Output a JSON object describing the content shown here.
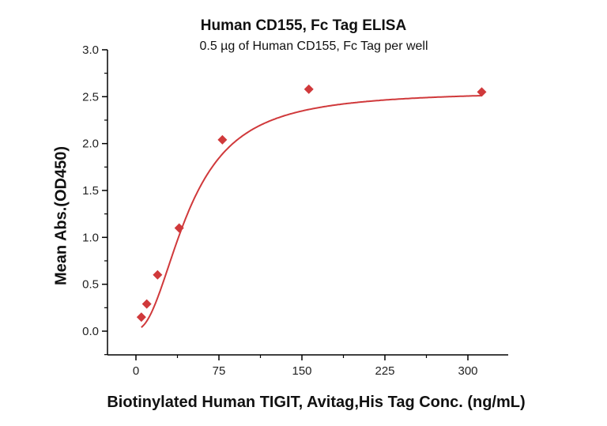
{
  "chart_data": {
    "type": "scatter",
    "title": "Human CD155, Fc Tag ELISA",
    "subtitle": "0.5 µg of Human CD155, Fc Tag per well",
    "xlabel": "Biotinylated Human TIGIT, Avitag,His Tag Conc. (ng/mL)",
    "ylabel": "Mean Abs.(OD450)",
    "xlim": [
      -27,
      337
    ],
    "ylim": [
      -0.25,
      3.0
    ],
    "x_ticks": [
      0,
      75,
      150,
      225,
      300
    ],
    "y_ticks": [
      0.0,
      0.5,
      1.0,
      1.5,
      2.0,
      2.5,
      3.0
    ],
    "x_tick_labels": [
      "0",
      "75",
      "150",
      "225",
      "300"
    ],
    "y_tick_labels": [
      "0.0",
      "0.5",
      "1.0",
      "1.5",
      "2.0",
      "2.5",
      "3.0"
    ],
    "grid": false,
    "legend": null,
    "series": [
      {
        "name": "Mean Abs.(OD450)",
        "marker": "diamond",
        "color": "#d0393b",
        "fit": "4PL curve",
        "x": [
          4.88,
          9.77,
          19.53,
          39.06,
          78.13,
          156.25,
          312.5
        ],
        "y": [
          0.15,
          0.29,
          0.6,
          1.1,
          2.04,
          2.58,
          2.55
        ]
      }
    ]
  },
  "colors": {
    "series": "#d0393b",
    "axis": "#000000",
    "text": "#111111"
  }
}
